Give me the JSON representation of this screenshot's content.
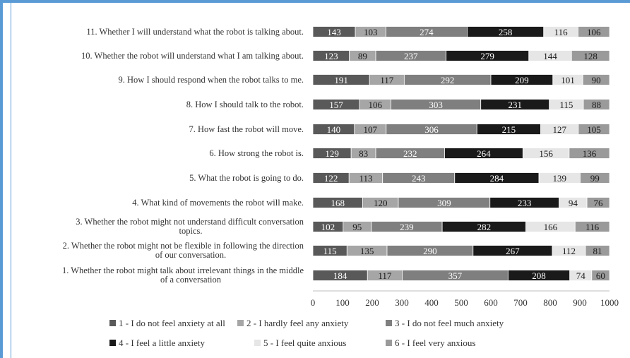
{
  "colors": {
    "frame": "#5b9bd5",
    "segments": [
      "#595959",
      "#a6a6a6",
      "#7f7f7f",
      "#1a1a1a",
      "#e6e6e6",
      "#9a9a9a"
    ],
    "labels": [
      "#ffffff",
      "#1a1a1a",
      "#ffffff",
      "#ffffff",
      "#1a1a1a",
      "#1a1a1a"
    ]
  },
  "chart_data": {
    "type": "bar",
    "orientation": "horizontal",
    "stacked": true,
    "categories": [
      [
        "11. Whether I will understand what the robot is talking about."
      ],
      [
        "10. Whether the robot will understand what I am talking about."
      ],
      [
        "9. How I should respond when the robot talks to me."
      ],
      [
        "8. How I should talk to the robot."
      ],
      [
        "7. How fast the robot will move."
      ],
      [
        "6. How strong the robot is."
      ],
      [
        "5. What the robot is going to do."
      ],
      [
        "4. What kind of movements the robot will make."
      ],
      [
        "3. Whether the robot might not understand difficult conversation",
        "topics."
      ],
      [
        "2. Whether the robot might not be flexible in following the direction",
        "of our conversation."
      ],
      [
        "1. Whether the robot might talk about irrelevant things in the middle",
        "of a conversation"
      ]
    ],
    "series": [
      {
        "name": "1 - I do not feel anxiety at all",
        "values": [
          143,
          123,
          191,
          157,
          140,
          129,
          122,
          168,
          102,
          115,
          184
        ]
      },
      {
        "name": "2 - I hardly feel any anxiety",
        "values": [
          103,
          89,
          117,
          106,
          107,
          83,
          113,
          120,
          95,
          135,
          117
        ]
      },
      {
        "name": "3 - I do not feel much anxiety",
        "values": [
          274,
          237,
          292,
          303,
          306,
          232,
          243,
          309,
          239,
          290,
          357
        ]
      },
      {
        "name": "4 - I feel a little anxiety",
        "values": [
          258,
          279,
          209,
          231,
          215,
          264,
          284,
          233,
          282,
          267,
          208
        ]
      },
      {
        "name": "5 - I feel quite anxious",
        "values": [
          116,
          144,
          101,
          115,
          127,
          156,
          139,
          94,
          166,
          112,
          74
        ]
      },
      {
        "name": "6 - I feel very anxious",
        "values": [
          106,
          128,
          90,
          88,
          105,
          136,
          99,
          76,
          116,
          81,
          60
        ]
      }
    ],
    "x_ticks": [
      "0",
      "100",
      "200",
      "300",
      "400",
      "500",
      "600",
      "700",
      "800",
      "900",
      "1000"
    ],
    "xlim": [
      0,
      1000
    ],
    "grid": false,
    "legend_position": "bottom"
  }
}
